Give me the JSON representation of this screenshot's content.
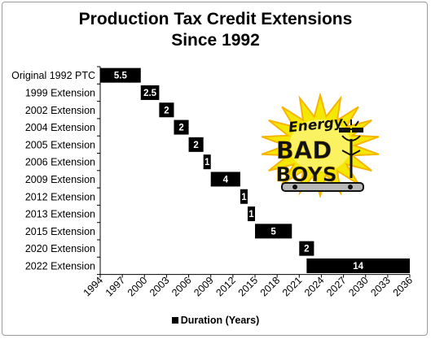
{
  "chart_data": {
    "type": "bar",
    "orientation": "horizontal-gantt",
    "title": "Production Tax Credit Extensions",
    "subtitle": "Since 1992",
    "categories": [
      "Original 1992 PTC",
      "1999 Extension",
      "2002 Extension",
      "2004 Extension",
      "2005 Extension",
      "2006 Extension",
      "2009 Extension",
      "2012 Extension",
      "2013 Extension",
      "2015 Extension",
      "2020 Extension",
      "2022 Extension"
    ],
    "series": [
      {
        "name": "Duration (Years)",
        "start": [
          1994,
          1999.5,
          2002,
          2004,
          2006,
          2008,
          2009,
          2013,
          2014,
          2015,
          2021,
          2022
        ],
        "values": [
          5.5,
          2.5,
          2,
          2,
          2,
          1,
          4,
          1,
          1,
          5,
          2,
          14
        ],
        "value_labels": [
          "5.5",
          "2.5",
          "2",
          "2",
          "2",
          "1",
          "4",
          "1",
          "1",
          "5",
          "2",
          "14"
        ]
      }
    ],
    "x_ticks": [
      "1994",
      "1997",
      "2000",
      "2003",
      "2006",
      "2009",
      "2012",
      "2015",
      "2018",
      "2021",
      "2024",
      "2027",
      "2030",
      "2033",
      "2036"
    ],
    "xlim": [
      1994,
      2036
    ],
    "grid": false,
    "legend": "bottom",
    "colors": {
      "bar": "#000000",
      "bar_label": "#ffffff",
      "axis": "#000000"
    }
  },
  "logo": {
    "line1": "Energy",
    "line2": "BAD",
    "line3": "BOYS",
    "colors": {
      "burst": "#f5e800",
      "burst_edge": "#f7b500",
      "text": "#111111",
      "accent": "#e8c000"
    }
  }
}
